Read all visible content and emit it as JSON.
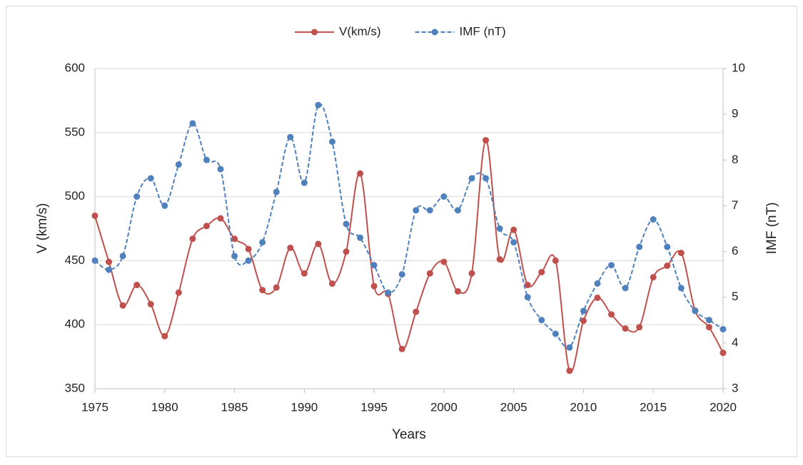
{
  "chart_data": {
    "type": "line",
    "x_label": "Years",
    "y_label": "V (km/s)",
    "y2_label": "IMF (nT)",
    "x": [
      1975,
      1976,
      1977,
      1978,
      1979,
      1980,
      1981,
      1982,
      1983,
      1984,
      1985,
      1986,
      1987,
      1988,
      1989,
      1990,
      1991,
      1992,
      1993,
      1994,
      1995,
      1996,
      1997,
      1998,
      1999,
      2000,
      2001,
      2002,
      2003,
      2004,
      2005,
      2006,
      2007,
      2008,
      2009,
      2010,
      2011,
      2012,
      2013,
      2014,
      2015,
      2016,
      2017,
      2018,
      2019,
      2020
    ],
    "series": [
      {
        "name": "V(km/s)",
        "color": "#c0504d",
        "dashed": false,
        "values": [
          485,
          449,
          415,
          431,
          416,
          391,
          425,
          467,
          477,
          483,
          467,
          459,
          427,
          429,
          460,
          440,
          463,
          432,
          457,
          518,
          430,
          424,
          381,
          410,
          440,
          449,
          426,
          440,
          544,
          451,
          474,
          431,
          441,
          450,
          364,
          403,
          421,
          408,
          397,
          398,
          437,
          446,
          456,
          411,
          398,
          378
        ]
      },
      {
        "name": "IMF (nT)",
        "color": "#4f81bd",
        "dashed": true,
        "axis": "y2",
        "values": [
          5.8,
          5.6,
          5.9,
          7.2,
          7.6,
          7.0,
          7.9,
          8.8,
          8.0,
          7.8,
          5.9,
          5.8,
          6.2,
          7.3,
          8.5,
          7.5,
          9.2,
          8.4,
          6.6,
          6.3,
          5.7,
          5.1,
          5.5,
          6.9,
          6.9,
          7.2,
          6.9,
          7.6,
          7.6,
          6.5,
          6.2,
          5.0,
          4.5,
          4.2,
          3.9,
          4.7,
          5.3,
          5.7,
          5.2,
          6.1,
          6.7,
          6.1,
          5.2,
          4.7,
          4.5,
          4.3
        ]
      }
    ],
    "xlim": [
      1975,
      2020
    ],
    "xticks": [
      1975,
      1980,
      1985,
      1990,
      1995,
      2000,
      2005,
      2010,
      2015,
      2020
    ],
    "ylim": [
      350,
      600
    ],
    "yticks": [
      350,
      400,
      450,
      500,
      550,
      600
    ],
    "y2lim": [
      3,
      10
    ],
    "y2ticks": [
      3,
      4,
      5,
      6,
      7,
      8,
      9,
      10
    ],
    "grid": true,
    "smooth": true,
    "legend": "top"
  }
}
